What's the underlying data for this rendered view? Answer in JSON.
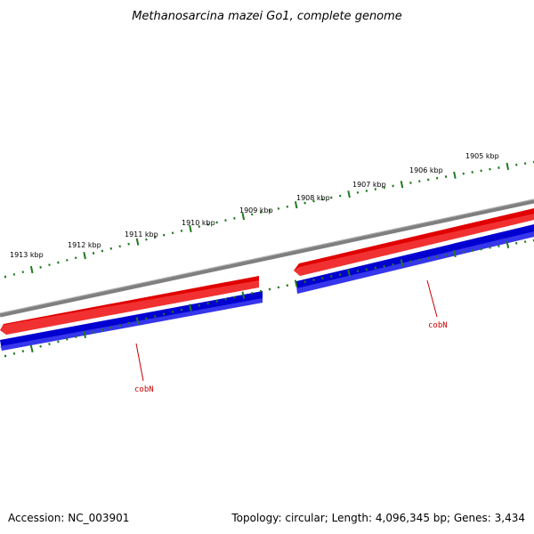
{
  "title": "Methanosarcina mazei Go1, complete genome",
  "footer": {
    "accession": "Accession: NC_003901",
    "summary": "Topology: circular; Length: 4,096,345 bp; Genes: 3,434"
  },
  "colors": {
    "background": "#ffffff",
    "backbone": "#7f7f7f",
    "forward_strand": "#e00000",
    "reverse_strand": "#0000d0",
    "ticks": "#1e7a1e",
    "label_line": "#cc0000"
  },
  "scale": {
    "unit": "kbp",
    "labels": [
      "1905 kbp",
      "1906 kbp",
      "1907 kbp",
      "1908 kbp",
      "1909 kbp",
      "1910 kbp",
      "1911 kbp",
      "1912 kbp",
      "1913 kbp"
    ]
  },
  "genes": [
    {
      "name": "cobN",
      "strand": "forward"
    },
    {
      "name": "cobN",
      "strand": "reverse"
    }
  ],
  "gene_labels": [
    "cobN",
    "cobN"
  ]
}
